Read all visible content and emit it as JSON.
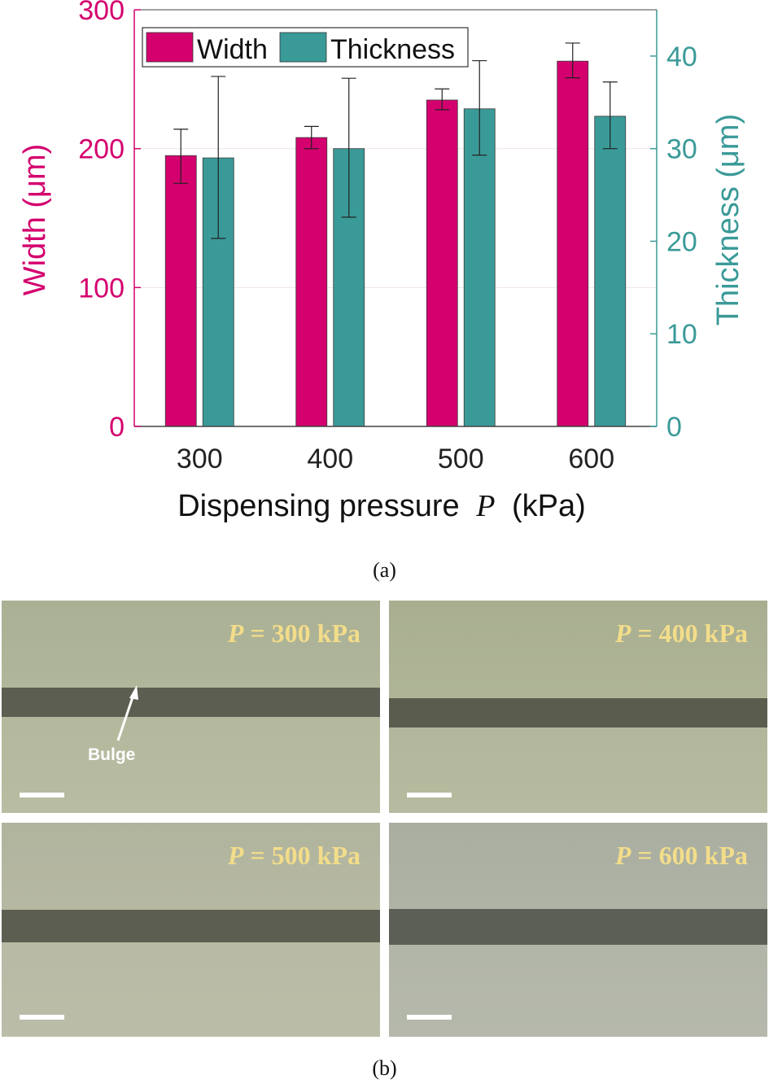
{
  "chart_data": {
    "type": "bar",
    "categories": [
      "300",
      "400",
      "500",
      "600"
    ],
    "xlabel": "Dispensing pressure",
    "xlabel_symbol": "P",
    "xlabel_unit": "(kPa)",
    "ylabel_left": "Width (μm)",
    "ylabel_right": "Thickness (μm)",
    "ylim_left": [
      0,
      300
    ],
    "ylim_right": [
      0,
      45
    ],
    "yticks_left": [
      0,
      100,
      200,
      300
    ],
    "yticks_right": [
      0,
      10,
      20,
      30,
      40
    ],
    "grid": true,
    "legend_position": "top-left",
    "series": [
      {
        "name": "Width",
        "axis": "left",
        "color": "#d4006e",
        "values": [
          195,
          208,
          235,
          263
        ],
        "err_low": [
          175,
          200,
          228,
          251
        ],
        "err_high": [
          214,
          216,
          243,
          276
        ]
      },
      {
        "name": "Thickness",
        "axis": "right",
        "color": "#3a9a98",
        "values": [
          29,
          30,
          34.3,
          33.5
        ],
        "err_low": [
          20.3,
          22.6,
          29.3,
          30
        ],
        "err_high": [
          37.8,
          37.6,
          39.5,
          37.2
        ]
      }
    ]
  },
  "captions": {
    "a": "(a)",
    "b": "(b)"
  },
  "panels": [
    {
      "eq": "= 300 kPa",
      "sym": "P"
    },
    {
      "eq": "= 400 kPa",
      "sym": "P"
    },
    {
      "eq": "= 500 kPa",
      "sym": "P"
    },
    {
      "eq": "= 600 kPa",
      "sym": "P"
    }
  ],
  "bulge_label": "Bulge",
  "colors": {
    "width": "#d4006e",
    "thickness": "#3a9a98"
  }
}
